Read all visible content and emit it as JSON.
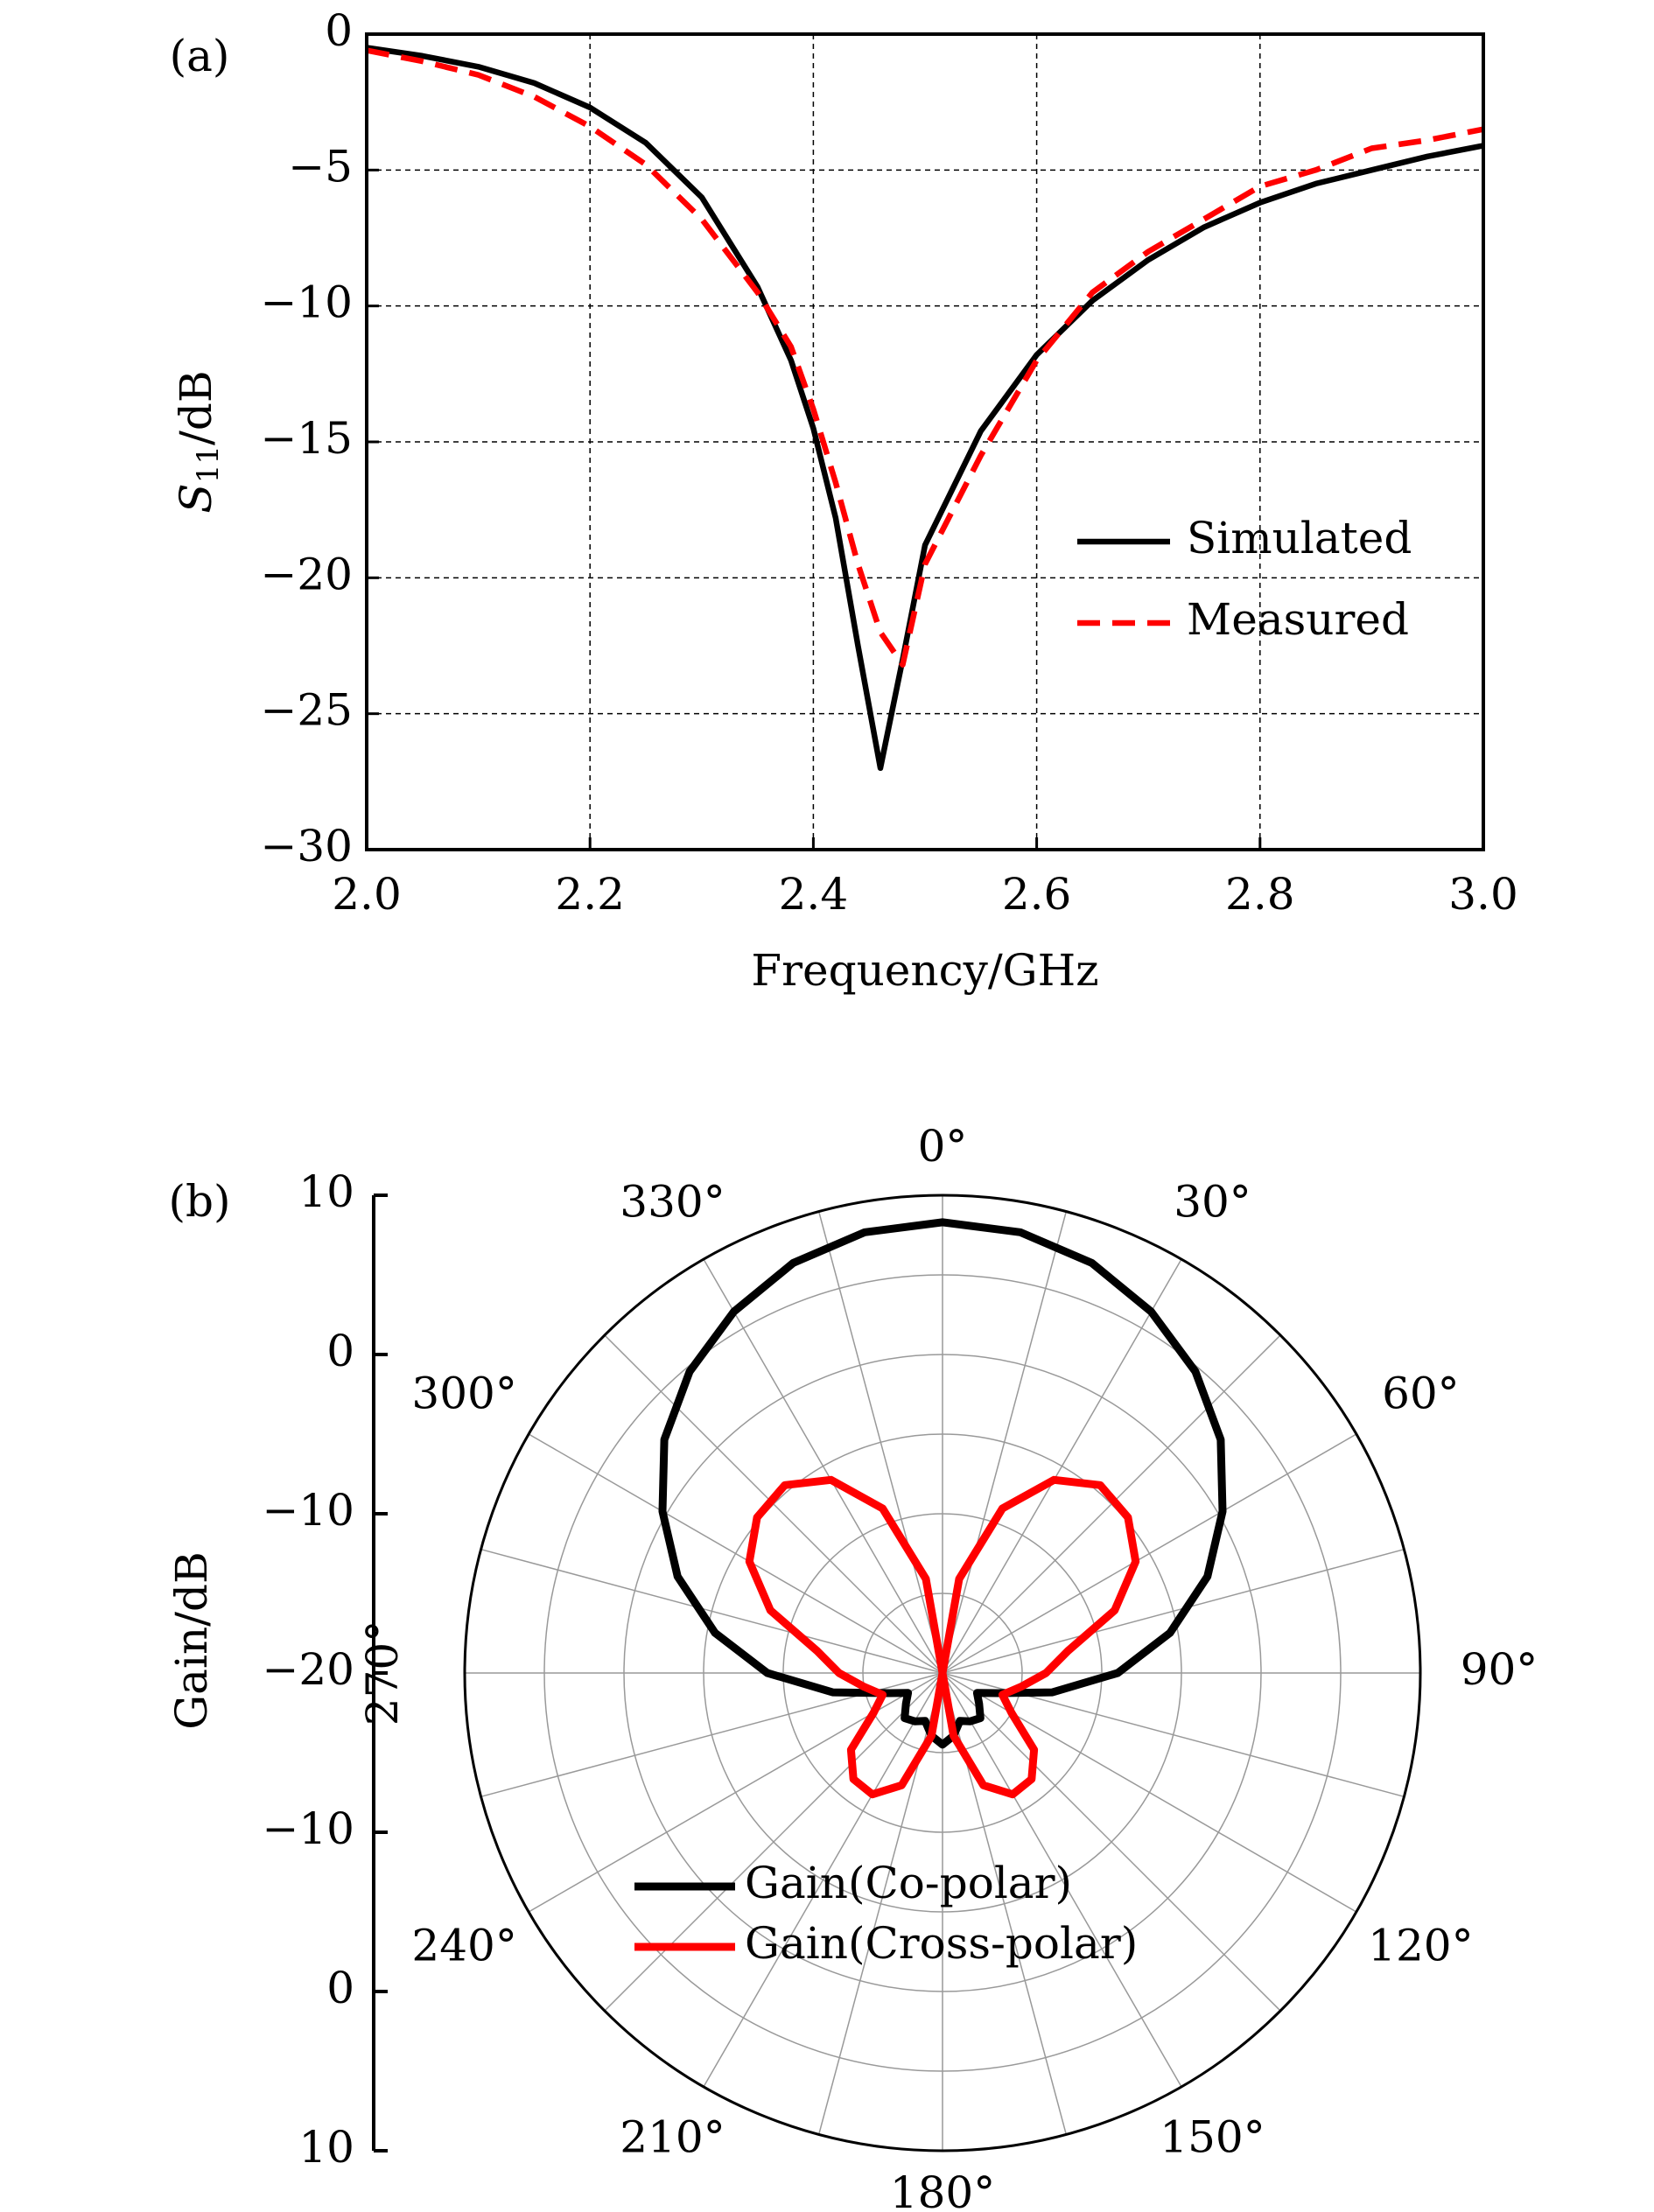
{
  "chart_data": [
    {
      "type": "line",
      "annotation": "(a)",
      "xlabel": "Frequency/GHz",
      "ylabel": [
        "S",
        "11",
        "/dB"
      ],
      "x": [
        2.0,
        2.05,
        2.1,
        2.15,
        2.2,
        2.25,
        2.3,
        2.35,
        2.38,
        2.4,
        2.42,
        2.44,
        2.46,
        2.48,
        2.5,
        2.55,
        2.6,
        2.65,
        2.7,
        2.75,
        2.8,
        2.85,
        2.9,
        2.95,
        3.0
      ],
      "series": [
        {
          "name": "Simulated",
          "color": "#000000",
          "linestyle": "solid",
          "values": [
            -0.5,
            -0.8,
            -1.2,
            -1.8,
            -2.7,
            -4.0,
            -6.0,
            -9.3,
            -12.0,
            -14.5,
            -17.8,
            -22.5,
            -27.0,
            -23.0,
            -18.8,
            -14.6,
            -11.8,
            -9.8,
            -8.3,
            -7.1,
            -6.2,
            -5.5,
            -5.0,
            -4.5,
            -4.1
          ]
        },
        {
          "name": "Measured",
          "color": "#ff0000",
          "linestyle": "dashed",
          "values": [
            -0.6,
            -1.0,
            -1.5,
            -2.3,
            -3.4,
            -4.8,
            -6.8,
            -9.5,
            -11.5,
            -13.8,
            -16.5,
            -19.5,
            -22.0,
            -23.2,
            -19.5,
            -15.5,
            -12.0,
            -9.5,
            -8.0,
            -6.8,
            -5.6,
            -5.0,
            -4.2,
            -3.9,
            -3.5
          ]
        }
      ],
      "xlim": [
        2.0,
        3.0
      ],
      "xticks": [
        {
          "value": 2,
          "label": "2.0"
        },
        2.2,
        2.4,
        2.6,
        2.8,
        {
          "value": 3,
          "label": "3.0"
        }
      ],
      "ylim": [
        -30,
        0
      ],
      "yticks": [
        0,
        {
          "value": -5,
          "label": "−5"
        },
        {
          "value": -10,
          "label": "−10"
        },
        {
          "value": -15,
          "label": "−15"
        },
        {
          "value": -20,
          "label": "−20"
        },
        {
          "value": -25,
          "label": "−25"
        },
        {
          "value": -30,
          "label": "−30"
        }
      ],
      "grid": true,
      "legend": "center right"
    },
    {
      "type": "polar",
      "annotation": "(b)",
      "rlabel": "Gain/dB",
      "rlim": [
        -20,
        10
      ],
      "rticks": [
        {
          "value": -20,
          "label": "−20"
        },
        {
          "value": -10,
          "label": "−10"
        },
        0,
        10
      ],
      "rgrid": [
        -15,
        -10,
        -5,
        0,
        5,
        10
      ],
      "theta": [
        0,
        10,
        20,
        30,
        40,
        50,
        60,
        70,
        80,
        90,
        100,
        110,
        120,
        130,
        140,
        150,
        160,
        170,
        180,
        190,
        200,
        210,
        220,
        230,
        240,
        250,
        260,
        270,
        280,
        290,
        300,
        310,
        320,
        330,
        340,
        350
      ],
      "theta_grid": [
        0,
        15,
        30,
        45,
        60,
        75,
        90,
        105,
        120,
        135,
        150,
        165,
        180,
        195,
        210,
        225,
        240,
        255,
        270,
        285,
        300,
        315,
        330,
        345
      ],
      "theta_ticks": [
        {
          "value": 0,
          "label": "0°"
        },
        {
          "value": 30,
          "label": "30°"
        },
        {
          "value": 60,
          "label": "60°"
        },
        {
          "value": 90,
          "label": "90°"
        },
        {
          "value": 120,
          "label": "120°"
        },
        {
          "value": 150,
          "label": "150°"
        },
        {
          "value": 180,
          "label": "180°"
        },
        {
          "value": 210,
          "label": "210°"
        },
        {
          "value": 240,
          "label": "240°"
        },
        {
          "value": 270,
          "label": "270°"
        },
        {
          "value": 300,
          "label": "300°"
        },
        {
          "value": 330,
          "label": "330°"
        }
      ],
      "series": [
        {
          "name": "Gain(Co-polar)",
          "color": "#000000",
          "values": [
            8.3,
            8.1,
            7.4,
            6.2,
            4.7,
            2.8,
            0.3,
            -2.3,
            -5.5,
            -9,
            -13,
            -16.3,
            -17.5,
            -17,
            -16.3,
            -16.5,
            -16.8,
            -16,
            -15.5,
            -16,
            -16.8,
            -16.5,
            -16.3,
            -17,
            -17.5,
            -16.3,
            -13,
            -9,
            -5.5,
            -2.3,
            0.3,
            2.8,
            4.7,
            6.2,
            7.4,
            8.1
          ]
        },
        {
          "name": "Gain(Cross-polar)",
          "color": "#ff0000",
          "values": [
            -20,
            -14,
            -9,
            -6,
            -4.6,
            -4.8,
            -6,
            -8.5,
            -12,
            -13.5,
            -15,
            -16,
            -15,
            -12.5,
            -11.3,
            -11.2,
            -12.5,
            -16,
            -20,
            -16,
            -12.5,
            -11.2,
            -11.3,
            -12.5,
            -15,
            -16,
            -15,
            -13.5,
            -12,
            -8.5,
            -6,
            -4.8,
            -4.6,
            -6,
            -9,
            -14
          ]
        }
      ],
      "grid": true,
      "legend": "lower left"
    }
  ]
}
